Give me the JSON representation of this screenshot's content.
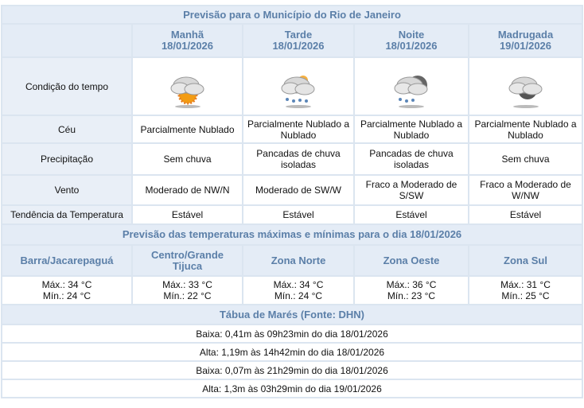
{
  "title": "Previsão para o Município do Rio de Janeiro",
  "periods": [
    {
      "name": "Manhã",
      "date": "18/01/2026",
      "icon": "partly-cloudy-sun-icon",
      "ceu": "Parcialmente Nublado",
      "precip": "Sem chuva",
      "vento": "Moderado de NW/N",
      "tendencia": "Estável"
    },
    {
      "name": "Tarde",
      "date": "18/01/2026",
      "icon": "cloud-rain-icon",
      "ceu": "Parcialmente Nublado a Nublado",
      "precip": "Pancadas de chuva isoladas",
      "vento": "Moderado de SW/W",
      "tendencia": "Estável"
    },
    {
      "name": "Noite",
      "date": "18/01/2026",
      "icon": "cloud-moon-rain-icon",
      "ceu": "Parcialmente Nublado a Nublado",
      "precip": "Pancadas de chuva isoladas",
      "vento": "Fraco a Moderado de S/SW",
      "tendencia": "Estável"
    },
    {
      "name": "Madrugada",
      "date": "19/01/2026",
      "icon": "cloud-moon-icon",
      "ceu": "Parcialmente Nublado a Nublado",
      "precip": "Sem chuva",
      "vento": "Fraco a Moderado de W/NW",
      "tendencia": "Estável"
    }
  ],
  "rows": {
    "condicao": "Condição do tempo",
    "ceu": "Céu",
    "precip": "Precipitação",
    "vento": "Vento",
    "tendencia": "Tendência da Temperatura"
  },
  "temp_title": "Previsão das temperaturas máximas e mínimas para o dia 18/01/2026",
  "zones": [
    {
      "name": "Barra/Jacarepaguá",
      "max": "Máx.: 34 °C",
      "min": "Mín.: 24 °C"
    },
    {
      "name": "Centro/Grande Tijuca",
      "max": "Máx.: 33 °C",
      "min": "Mín.: 22 °C"
    },
    {
      "name": "Zona Norte",
      "max": "Máx.: 34 °C",
      "min": "Mín.: 24 °C"
    },
    {
      "name": "Zona Oeste",
      "max": "Máx.: 36 °C",
      "min": "Mín.: 23 °C"
    },
    {
      "name": "Zona Sul",
      "max": "Máx.: 31 °C",
      "min": "Mín.: 25 °C"
    }
  ],
  "tides_title": "Tábua de Marés (Fonte: DHN)",
  "tides": [
    "Baixa: 0,41m às 09h23min do dia 18/01/2026",
    "Alta: 1,19m às 14h42min do dia 18/01/2026",
    "Baixa: 0,07m às 21h29min do dia 18/01/2026",
    "Alta: 1,3m às 03h29min do dia 19/01/2026"
  ]
}
